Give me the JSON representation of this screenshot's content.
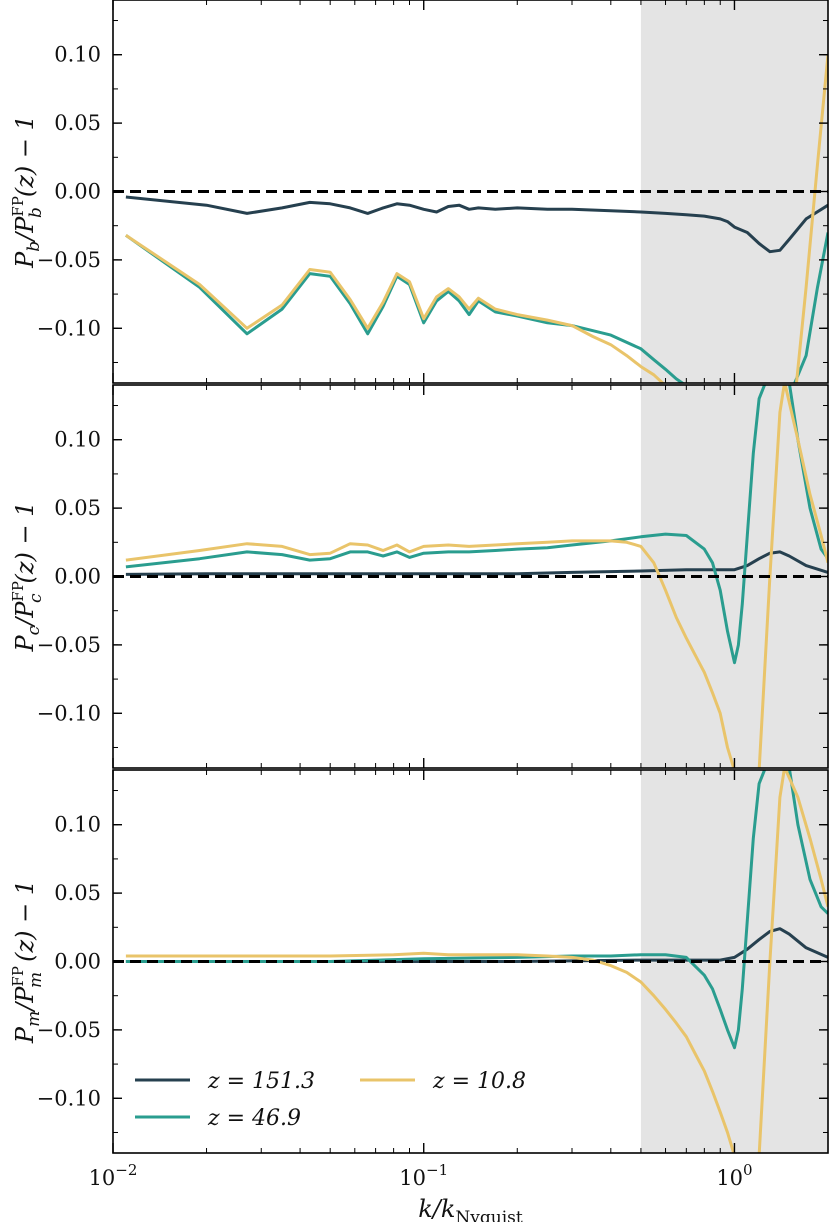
{
  "colors": {
    "z151": "#26404f",
    "z47": "#2a9d8f",
    "z11": "#e9c46a",
    "shade": "#e4e4e4",
    "zero_line": "#000000"
  },
  "chart_data": [
    {
      "type": "line",
      "ylabel": "P_b/P_b^FP(z) − 1",
      "xscale": "log",
      "xlim": [
        0.01,
        2.0
      ],
      "ylim": [
        -0.14,
        0.14
      ],
      "yticks": [
        -0.1,
        -0.05,
        0.0,
        0.05,
        0.1
      ],
      "ytick_labels": [
        "−0.10",
        "−0.05",
        "0.00",
        "0.05",
        "0.10"
      ],
      "shaded_region": [
        0.5,
        2.0
      ],
      "hline": 0,
      "series": [
        {
          "name": "z = 151.3",
          "color": "#26404f",
          "x": [
            0.011,
            0.02,
            0.027,
            0.035,
            0.043,
            0.05,
            0.058,
            0.066,
            0.074,
            0.082,
            0.09,
            0.1,
            0.11,
            0.12,
            0.13,
            0.14,
            0.15,
            0.17,
            0.2,
            0.25,
            0.3,
            0.4,
            0.5,
            0.6,
            0.7,
            0.8,
            0.9,
            0.95,
            1.0,
            1.1,
            1.2,
            1.3,
            1.4,
            1.5,
            1.7,
            2.0
          ],
          "y": [
            -0.004,
            -0.01,
            -0.016,
            -0.012,
            -0.008,
            -0.009,
            -0.012,
            -0.016,
            -0.012,
            -0.009,
            -0.01,
            -0.013,
            -0.015,
            -0.011,
            -0.01,
            -0.013,
            -0.012,
            -0.013,
            -0.012,
            -0.013,
            -0.013,
            -0.014,
            -0.015,
            -0.016,
            -0.017,
            -0.018,
            -0.02,
            -0.022,
            -0.026,
            -0.03,
            -0.038,
            -0.044,
            -0.043,
            -0.035,
            -0.02,
            -0.01
          ]
        },
        {
          "name": "z = 46.9",
          "color": "#2a9d8f",
          "x": [
            0.011,
            0.019,
            0.027,
            0.035,
            0.043,
            0.05,
            0.058,
            0.066,
            0.074,
            0.082,
            0.09,
            0.1,
            0.11,
            0.12,
            0.13,
            0.14,
            0.15,
            0.17,
            0.2,
            0.25,
            0.3,
            0.4,
            0.5,
            0.55,
            0.6,
            0.65,
            0.7,
            1.55,
            1.7,
            1.85,
            2.0
          ],
          "y": [
            -0.032,
            -0.07,
            -0.104,
            -0.086,
            -0.06,
            -0.062,
            -0.082,
            -0.104,
            -0.084,
            -0.062,
            -0.068,
            -0.096,
            -0.08,
            -0.073,
            -0.08,
            -0.09,
            -0.08,
            -0.088,
            -0.091,
            -0.096,
            -0.098,
            -0.105,
            -0.115,
            -0.123,
            -0.13,
            -0.137,
            -0.142,
            -0.142,
            -0.12,
            -0.07,
            -0.03
          ]
        },
        {
          "name": "z = 10.8",
          "color": "#e9c46a",
          "x": [
            0.011,
            0.019,
            0.027,
            0.035,
            0.043,
            0.05,
            0.058,
            0.066,
            0.074,
            0.082,
            0.09,
            0.1,
            0.11,
            0.12,
            0.13,
            0.14,
            0.15,
            0.17,
            0.2,
            0.25,
            0.3,
            0.35,
            0.4,
            0.45,
            0.5,
            0.55,
            0.6,
            1.58,
            1.7,
            1.85,
            2.0
          ],
          "y": [
            -0.032,
            -0.068,
            -0.1,
            -0.083,
            -0.057,
            -0.059,
            -0.079,
            -0.1,
            -0.081,
            -0.06,
            -0.066,
            -0.093,
            -0.077,
            -0.071,
            -0.077,
            -0.086,
            -0.078,
            -0.086,
            -0.09,
            -0.094,
            -0.098,
            -0.106,
            -0.112,
            -0.12,
            -0.128,
            -0.134,
            -0.142,
            -0.142,
            -0.07,
            0.02,
            0.1
          ]
        }
      ]
    },
    {
      "type": "line",
      "ylabel": "P_c/P_c^FP(z) − 1",
      "xscale": "log",
      "xlim": [
        0.01,
        2.0
      ],
      "ylim": [
        -0.14,
        0.14
      ],
      "yticks": [
        -0.1,
        -0.05,
        0.0,
        0.05,
        0.1
      ],
      "ytick_labels": [
        "−0.10",
        "−0.05",
        "0.00",
        "0.05",
        "0.10"
      ],
      "shaded_region": [
        0.5,
        2.0
      ],
      "hline": 0,
      "series": [
        {
          "name": "z = 151.3",
          "color": "#26404f",
          "x": [
            0.011,
            0.02,
            0.05,
            0.1,
            0.2,
            0.3,
            0.5,
            0.7,
            0.85,
            1.0,
            1.1,
            1.2,
            1.3,
            1.4,
            1.5,
            1.7,
            2.0
          ],
          "y": [
            0.0015,
            0.002,
            0.002,
            0.002,
            0.002,
            0.003,
            0.004,
            0.005,
            0.005,
            0.005,
            0.008,
            0.013,
            0.017,
            0.018,
            0.015,
            0.008,
            0.003
          ]
        },
        {
          "name": "z = 46.9",
          "color": "#2a9d8f",
          "x": [
            0.011,
            0.019,
            0.027,
            0.035,
            0.043,
            0.05,
            0.058,
            0.066,
            0.074,
            0.082,
            0.09,
            0.1,
            0.12,
            0.14,
            0.17,
            0.2,
            0.25,
            0.3,
            0.4,
            0.5,
            0.6,
            0.7,
            0.8,
            0.85,
            0.9,
            0.95,
            1.0,
            1.03,
            1.06,
            1.1,
            1.15,
            1.2,
            1.26,
            1.5,
            1.6,
            1.75,
            1.9,
            2.0
          ],
          "y": [
            0.007,
            0.013,
            0.018,
            0.016,
            0.012,
            0.013,
            0.018,
            0.018,
            0.015,
            0.018,
            0.014,
            0.017,
            0.018,
            0.018,
            0.019,
            0.02,
            0.021,
            0.023,
            0.026,
            0.029,
            0.031,
            0.03,
            0.02,
            0.01,
            -0.01,
            -0.04,
            -0.063,
            -0.05,
            -0.02,
            0.03,
            0.09,
            0.13,
            0.142,
            0.142,
            0.1,
            0.05,
            0.02,
            0.013
          ]
        },
        {
          "name": "z = 10.8",
          "color": "#e9c46a",
          "x": [
            0.011,
            0.019,
            0.027,
            0.035,
            0.043,
            0.05,
            0.058,
            0.066,
            0.074,
            0.082,
            0.09,
            0.1,
            0.12,
            0.14,
            0.17,
            0.2,
            0.25,
            0.3,
            0.35,
            0.4,
            0.45,
            0.5,
            0.55,
            0.6,
            0.65,
            0.7,
            0.75,
            0.8,
            0.85,
            0.9,
            0.95,
            1.0,
            1.2,
            1.3,
            1.4,
            1.45,
            1.6,
            1.75,
            1.9,
            2.0
          ],
          "y": [
            0.012,
            0.019,
            0.024,
            0.022,
            0.016,
            0.017,
            0.024,
            0.023,
            0.019,
            0.023,
            0.018,
            0.022,
            0.023,
            0.022,
            0.023,
            0.024,
            0.025,
            0.026,
            0.026,
            0.026,
            0.025,
            0.022,
            0.01,
            -0.01,
            -0.03,
            -0.045,
            -0.058,
            -0.07,
            -0.085,
            -0.1,
            -0.125,
            -0.142,
            -0.142,
            0.0,
            0.12,
            0.142,
            0.1,
            0.06,
            0.03,
            0.01
          ]
        }
      ]
    },
    {
      "type": "line",
      "ylabel": "P_m/P_m^FP(z) − 1",
      "xlabel": "k/k_Nyquist",
      "xscale": "log",
      "xlim": [
        0.01,
        2.0
      ],
      "ylim": [
        -0.14,
        0.14
      ],
      "xticks": [
        0.01,
        0.1,
        1
      ],
      "xtick_labels": [
        {
          "base": "10",
          "exp": "−2"
        },
        {
          "base": "10",
          "exp": "−1"
        },
        {
          "base": "10",
          "exp": "0"
        }
      ],
      "yticks": [
        -0.1,
        -0.05,
        0.0,
        0.05,
        0.1
      ],
      "ytick_labels": [
        "−0.10",
        "−0.05",
        "0.00",
        "0.05",
        "0.10"
      ],
      "shaded_region": [
        0.5,
        2.0
      ],
      "hline": 0,
      "legend": "lower-left",
      "series": [
        {
          "name": "z = 151.3",
          "color": "#26404f",
          "x": [
            0.011,
            0.05,
            0.1,
            0.2,
            0.5,
            0.7,
            0.9,
            1.0,
            1.1,
            1.2,
            1.3,
            1.4,
            1.5,
            1.7,
            2.0
          ],
          "y": [
            0.0,
            0.0,
            0.0,
            0.0,
            0.001,
            0.001,
            0.001,
            0.003,
            0.009,
            0.016,
            0.022,
            0.024,
            0.02,
            0.01,
            0.003
          ]
        },
        {
          "name": "z = 46.9",
          "color": "#2a9d8f",
          "x": [
            0.011,
            0.05,
            0.1,
            0.2,
            0.3,
            0.4,
            0.5,
            0.6,
            0.7,
            0.8,
            0.85,
            0.9,
            0.95,
            1.0,
            1.03,
            1.06,
            1.1,
            1.15,
            1.2,
            1.26,
            1.5,
            1.6,
            1.75,
            1.9,
            2.0
          ],
          "y": [
            0.0,
            0.0,
            0.002,
            0.003,
            0.004,
            0.004,
            0.005,
            0.005,
            0.003,
            -0.01,
            -0.02,
            -0.035,
            -0.05,
            -0.063,
            -0.05,
            -0.02,
            0.03,
            0.09,
            0.13,
            0.142,
            0.142,
            0.1,
            0.06,
            0.04,
            0.035
          ]
        },
        {
          "name": "z = 10.8",
          "color": "#e9c46a",
          "x": [
            0.011,
            0.02,
            0.03,
            0.05,
            0.08,
            0.1,
            0.12,
            0.15,
            0.2,
            0.25,
            0.3,
            0.35,
            0.4,
            0.45,
            0.5,
            0.55,
            0.6,
            0.65,
            0.7,
            0.75,
            0.8,
            0.85,
            0.9,
            0.95,
            1.0,
            1.2,
            1.3,
            1.4,
            1.45,
            1.6,
            1.75,
            1.9,
            2.0
          ],
          "y": [
            0.004,
            0.004,
            0.004,
            0.004,
            0.005,
            0.006,
            0.005,
            0.005,
            0.005,
            0.004,
            0.003,
            0.001,
            -0.003,
            -0.008,
            -0.015,
            -0.025,
            -0.035,
            -0.045,
            -0.055,
            -0.068,
            -0.08,
            -0.095,
            -0.11,
            -0.125,
            -0.142,
            -0.142,
            0.0,
            0.12,
            0.142,
            0.12,
            0.09,
            0.06,
            0.04
          ]
        }
      ]
    }
  ],
  "legend_entries": [
    "z = 151.3",
    "z = 46.9",
    "z = 10.8"
  ]
}
